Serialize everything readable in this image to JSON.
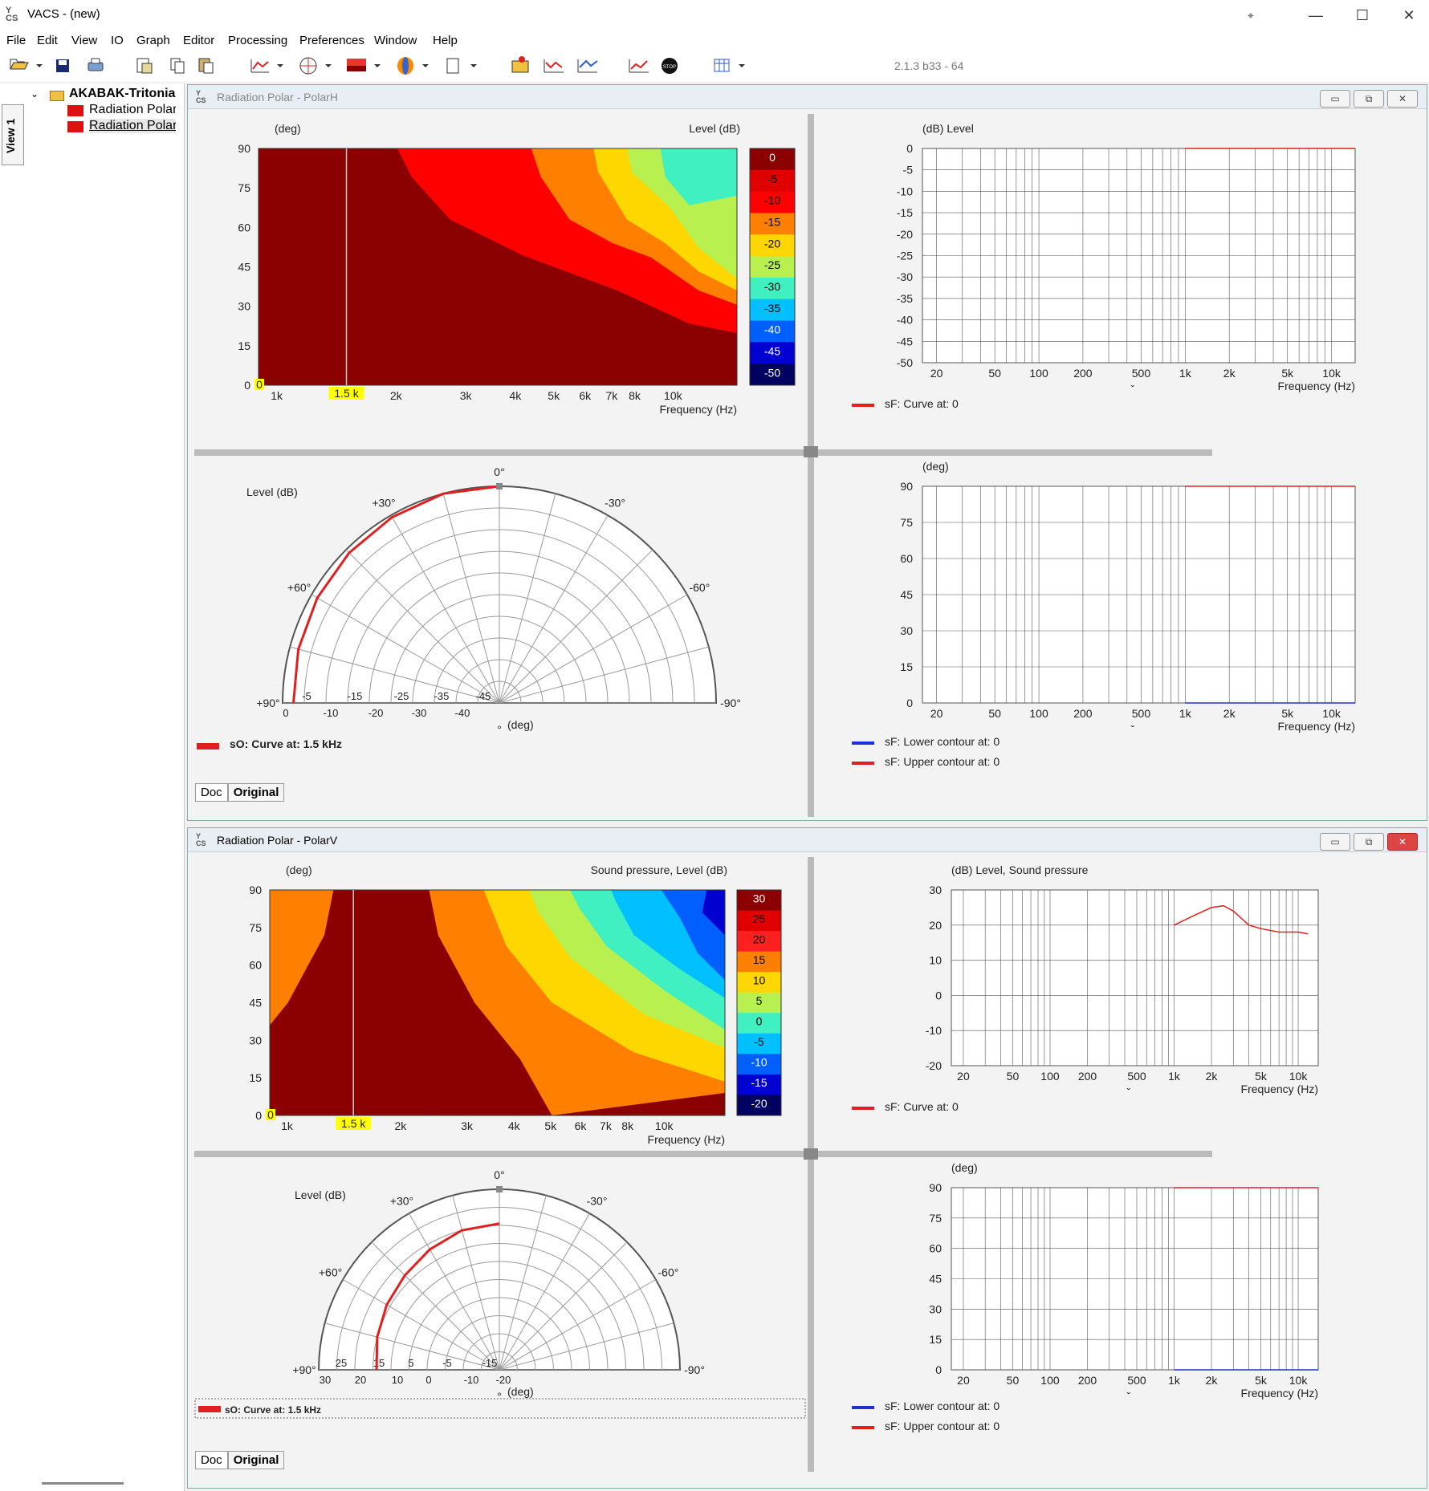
{
  "app": {
    "title": "VACS - (new)",
    "version": "2.1.3 b33 - 64"
  },
  "menu": [
    "File",
    "Edit",
    "View",
    "IO",
    "Graph",
    "Editor",
    "Processing",
    "Preferences",
    "Window",
    "Help"
  ],
  "sidebar": {
    "view_tab": "View 1",
    "root": "AKABAK-Tritonia",
    "items": [
      "Radiation Polar - PolarH",
      "Radiation Polar - PolarV"
    ]
  },
  "windows": [
    {
      "title": "Radiation Polar - PolarH",
      "contour": {
        "ylabel": "(deg)",
        "title": "Level  (dB)",
        "xlabel": "Frequency  (Hz)",
        "marker": "1.5 k",
        "y_marker": "0",
        "yticks": [
          "90",
          "75",
          "60",
          "45",
          "30",
          "15",
          "0"
        ],
        "xticks": [
          "1k",
          "2k",
          "3k",
          "4k",
          "5k",
          "6k",
          "7k",
          "8k",
          "10k"
        ],
        "scale": [
          "0",
          "-5",
          "-10",
          "-15",
          "-20",
          "-25",
          "-30",
          "-35",
          "-40",
          "-45",
          "-50"
        ]
      },
      "freq_plot": {
        "title": "(dB)  Level",
        "xlabel": "Frequency  (Hz)",
        "yticks": [
          "0",
          "-5",
          "-10",
          "-15",
          "-20",
          "-25",
          "-30",
          "-35",
          "-40",
          "-45",
          "-50"
        ],
        "xticks": [
          "20",
          "50",
          "100",
          "200",
          "500",
          "1k",
          "2k",
          "5k",
          "10k"
        ],
        "legend": [
          "sF: Curve at: 0"
        ]
      },
      "polar": {
        "title": "Level  (dB)",
        "xlabel": "(deg)",
        "angles": [
          "0°",
          "+30°",
          "-30°",
          "+60°",
          "-60°",
          "+90°",
          "-90°"
        ],
        "radial": [
          "-5",
          "-15",
          "-25",
          "-35",
          "-45"
        ],
        "axis": [
          "0",
          "-10",
          "-20",
          "-30",
          "-40"
        ],
        "legend": "sO: Curve at: 1.5 kHz"
      },
      "contour_plot": {
        "title": "(deg)",
        "xlabel": "Frequency  (Hz)",
        "yticks": [
          "90",
          "75",
          "60",
          "45",
          "30",
          "15",
          "0"
        ],
        "xticks": [
          "20",
          "50",
          "100",
          "200",
          "500",
          "1k",
          "2k",
          "5k",
          "10k"
        ],
        "legend": [
          "sF: Lower contour at: 0",
          "sF: Upper contour at: 0"
        ]
      },
      "tabs": [
        "Doc",
        "Original"
      ]
    },
    {
      "title": "Radiation Polar - PolarV",
      "contour": {
        "ylabel": "(deg)",
        "title": "Sound pressure, Level  (dB)",
        "xlabel": "Frequency  (Hz)",
        "marker": "1.5 k",
        "y_marker": "0",
        "yticks": [
          "90",
          "75",
          "60",
          "45",
          "30",
          "15",
          "0"
        ],
        "xticks": [
          "1k",
          "2k",
          "3k",
          "4k",
          "5k",
          "6k",
          "7k",
          "8k",
          "10k"
        ],
        "scale": [
          "30",
          "25",
          "20",
          "15",
          "10",
          "5",
          "0",
          "-5",
          "-10",
          "-15",
          "-20"
        ]
      },
      "freq_plot": {
        "title": "(dB)  Level, Sound pressure",
        "xlabel": "Frequency  (Hz)",
        "yticks": [
          "30",
          "20",
          "10",
          "0",
          "-10",
          "-20"
        ],
        "xticks": [
          "20",
          "50",
          "100",
          "200",
          "500",
          "1k",
          "2k",
          "5k",
          "10k"
        ],
        "legend": [
          "sF: Curve at: 0"
        ]
      },
      "polar": {
        "title": "Level  (dB)",
        "xlabel": "(deg)",
        "angles": [
          "0°",
          "+30°",
          "-30°",
          "+60°",
          "-60°",
          "+90°",
          "-90°"
        ],
        "radial": [
          "25",
          "15",
          "5",
          "-5",
          "-15"
        ],
        "axis": [
          "30",
          "20",
          "10",
          "0",
          "-10",
          "-20"
        ],
        "legend": "sO: Curve at: 1.5 kHz"
      },
      "contour_plot": {
        "title": "(deg)",
        "xlabel": "Frequency  (Hz)",
        "yticks": [
          "90",
          "75",
          "60",
          "45",
          "30",
          "15",
          "0"
        ],
        "xticks": [
          "20",
          "50",
          "100",
          "200",
          "500",
          "1k",
          "2k",
          "5k",
          "10k"
        ],
        "legend": [
          "sF: Lower contour at: 0",
          "sF: Upper contour at: 0"
        ]
      },
      "tabs": [
        "Doc",
        "Original"
      ]
    }
  ],
  "colors": {
    "accent_red": "#e02020",
    "contour_blue": "#2030d0",
    "dark_red": "#8b0000"
  },
  "chart_data": [
    {
      "type": "line",
      "title": "(dB)  Level, Sound pressure",
      "xlabel": "Frequency  (Hz)",
      "ylim": [
        -20,
        30
      ],
      "x": [
        1000,
        1500,
        2000,
        2500,
        3000,
        4000,
        5000,
        7000,
        10000,
        12000
      ],
      "series": [
        {
          "values": [
            20,
            23,
            25,
            25.5,
            24,
            20,
            19,
            18,
            18,
            17.5
          ]
        }
      ]
    }
  ]
}
